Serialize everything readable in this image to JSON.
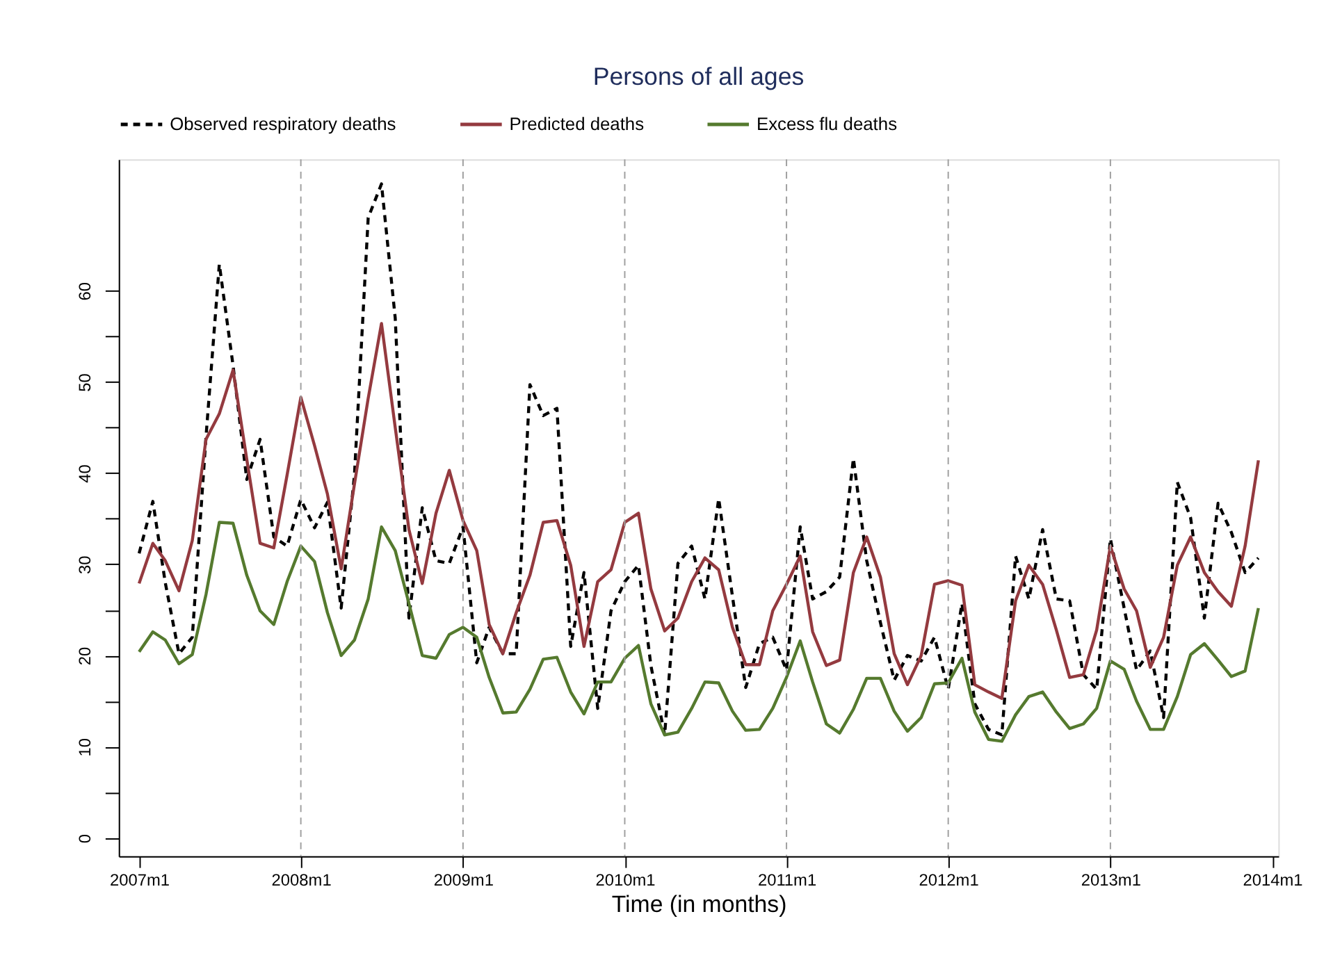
{
  "chart_data": {
    "type": "line",
    "title": "Persons of all ages",
    "xlabel": "Time (in months)",
    "x": [
      "2007-01",
      "2007-02",
      "2007-03",
      "2007-04",
      "2007-05",
      "2007-06",
      "2007-07",
      "2007-08",
      "2007-09",
      "2007-10",
      "2007-11",
      "2007-12",
      "2008-01",
      "2008-02",
      "2008-03",
      "2008-04",
      "2008-05",
      "2008-06",
      "2008-07",
      "2008-08",
      "2008-09",
      "2008-10",
      "2008-11",
      "2008-12",
      "2009-01",
      "2009-02",
      "2009-03",
      "2009-04",
      "2009-05",
      "2009-06",
      "2009-07",
      "2009-08",
      "2009-09",
      "2009-10",
      "2009-11",
      "2009-12",
      "2010-01",
      "2010-02",
      "2010-03",
      "2010-04",
      "2010-05",
      "2010-06",
      "2010-07",
      "2010-08",
      "2010-09",
      "2010-10",
      "2010-11",
      "2010-12",
      "2011-01",
      "2011-02",
      "2011-03",
      "2011-04",
      "2011-05",
      "2011-06",
      "2011-07",
      "2011-08",
      "2011-09",
      "2011-10",
      "2011-11",
      "2011-12",
      "2012-01",
      "2012-02",
      "2012-03",
      "2012-04",
      "2012-05",
      "2012-06",
      "2012-07",
      "2012-08",
      "2012-09",
      "2012-10",
      "2012-11",
      "2012-12",
      "2013-01",
      "2013-02",
      "2013-03",
      "2013-04",
      "2013-05",
      "2013-06",
      "2013-07",
      "2013-08",
      "2013-09",
      "2013-10",
      "2013-11",
      "2013-12"
    ],
    "series": [
      {
        "name": "Observed respiratory deaths",
        "color": "#000000",
        "line_style": "dashed",
        "values": [
          31.2,
          36.9,
          28,
          20.2,
          22,
          44,
          62.9,
          51.8,
          39.3,
          43.7,
          33,
          32,
          37.1,
          34,
          36.8,
          25.2,
          39.8,
          68,
          71.7,
          57,
          24.1,
          36.2,
          30.4,
          30.1,
          34.1,
          19.2,
          23.1,
          20.2,
          20.2,
          49.7,
          46.3,
          47.1,
          21,
          29.1,
          14.2,
          24.9,
          28.1,
          29.9,
          18.9,
          11.3,
          30.1,
          32,
          26.2,
          37.2,
          26.5,
          16.5,
          21.3,
          22,
          18.4,
          34.1,
          26.2,
          27,
          28.6,
          41.6,
          30.4,
          23.6,
          17.3,
          20,
          19.4,
          22,
          16.3,
          25.7,
          14.7,
          11.9,
          11.3,
          30.9,
          26.2,
          33.8,
          26.2,
          26,
          17.9,
          16.3,
          32.8,
          25.2,
          18.4,
          20.5,
          13.2,
          39,
          35.1,
          24.1,
          36.7,
          33.5,
          29.1,
          30.7
        ]
      },
      {
        "name": "Predicted deaths",
        "color": "#943a3f",
        "line_style": "solid",
        "values": [
          27.9,
          32.3,
          30.4,
          27.1,
          32.6,
          43.7,
          46.5,
          51.3,
          41.5,
          32.3,
          31.8,
          39.8,
          48.3,
          43,
          37.7,
          29.5,
          38.8,
          48.2,
          56.4,
          45,
          33.8,
          27.9,
          35.6,
          40.3,
          34.8,
          31.5,
          23.4,
          20.2,
          24.7,
          28.8,
          34.6,
          34.8,
          29.9,
          21,
          28.1,
          29.4,
          34.6,
          35.6,
          27.3,
          22.7,
          24.1,
          28.1,
          30.7,
          29.4,
          23.1,
          19,
          19,
          24.9,
          27.8,
          30.9,
          22.6,
          18.9,
          19.5,
          29.1,
          33,
          28.6,
          20.2,
          16.8,
          20,
          27.8,
          28.2,
          27.7,
          16.8,
          16,
          15.3,
          26,
          29.9,
          27.8,
          22.8,
          17.6,
          17.9,
          22.8,
          32,
          27.3,
          24.9,
          18.7,
          22,
          29.9,
          33,
          29.1,
          27,
          25.4,
          32,
          41.4
        ]
      },
      {
        "name": "Excess flu deaths",
        "color": "#557a2e",
        "line_style": "solid",
        "values": [
          20.4,
          22.6,
          21.7,
          19.1,
          20.1,
          26.7,
          34.6,
          34.5,
          28.8,
          24.9,
          23.4,
          28.1,
          32,
          30.3,
          24.7,
          20,
          21.7,
          26.2,
          34.1,
          31.5,
          25.7,
          20,
          19.7,
          22.3,
          23.1,
          22,
          17.6,
          13.7,
          13.8,
          16.3,
          19.6,
          19.8,
          16,
          13.6,
          17.1,
          17.1,
          19.7,
          21.1,
          14.7,
          11.3,
          11.6,
          14.2,
          17.1,
          17,
          13.9,
          11.8,
          11.9,
          14.2,
          17.6,
          21.6,
          17.1,
          12.5,
          11.5,
          14.1,
          17.5,
          17.5,
          13.9,
          11.7,
          13.2,
          16.9,
          17,
          19.7,
          13.8,
          10.8,
          10.6,
          13.5,
          15.5,
          16,
          13.8,
          12,
          12.5,
          14.2,
          19.4,
          18.5,
          15,
          11.9,
          11.9,
          15.5,
          20.1,
          21.3,
          19.5,
          17.7,
          18.3,
          25.2
        ]
      }
    ],
    "xlim": [
      "2006-11-16",
      "2014-01-15"
    ],
    "xticks": [
      {
        "value": "2007-01",
        "label": "2007m1"
      },
      {
        "value": "2008-01",
        "label": "2008m1"
      },
      {
        "value": "2009-01",
        "label": "2009m1"
      },
      {
        "value": "2010-01",
        "label": "2010m1"
      },
      {
        "value": "2011-01",
        "label": "2011m1"
      },
      {
        "value": "2012-01",
        "label": "2012m1"
      },
      {
        "value": "2013-01",
        "label": "2013m1"
      },
      {
        "value": "2014-01",
        "label": "2014m1"
      }
    ],
    "ylim": [
      -2,
      74.4
    ],
    "yticks": [
      0,
      {
        "value": 5,
        "label": null
      },
      10,
      {
        "value": 15,
        "label": null
      },
      20,
      {
        "value": 25,
        "label": null
      },
      30,
      {
        "value": 35,
        "label": null
      },
      40,
      {
        "value": 45,
        "label": null
      },
      50,
      {
        "value": 55,
        "label": null
      },
      60
    ],
    "ref_lines": [
      {
        "axis": "x",
        "value": "2008-01",
        "color": "#a0a0a0",
        "line_style": "dashed"
      },
      {
        "axis": "x",
        "value": "2009-01",
        "color": "#a0a0a0",
        "line_style": "dashed"
      },
      {
        "axis": "x",
        "value": "2010-01",
        "color": "#a0a0a0",
        "line_style": "dashed"
      },
      {
        "axis": "x",
        "value": "2011-01",
        "color": "#a0a0a0",
        "line_style": "dashed"
      },
      {
        "axis": "x",
        "value": "2012-01",
        "color": "#a0a0a0",
        "line_style": "dashed"
      },
      {
        "axis": "x",
        "value": "2013-01",
        "color": "#a0a0a0",
        "line_style": "dashed"
      }
    ],
    "grid": false,
    "legend": "top"
  }
}
